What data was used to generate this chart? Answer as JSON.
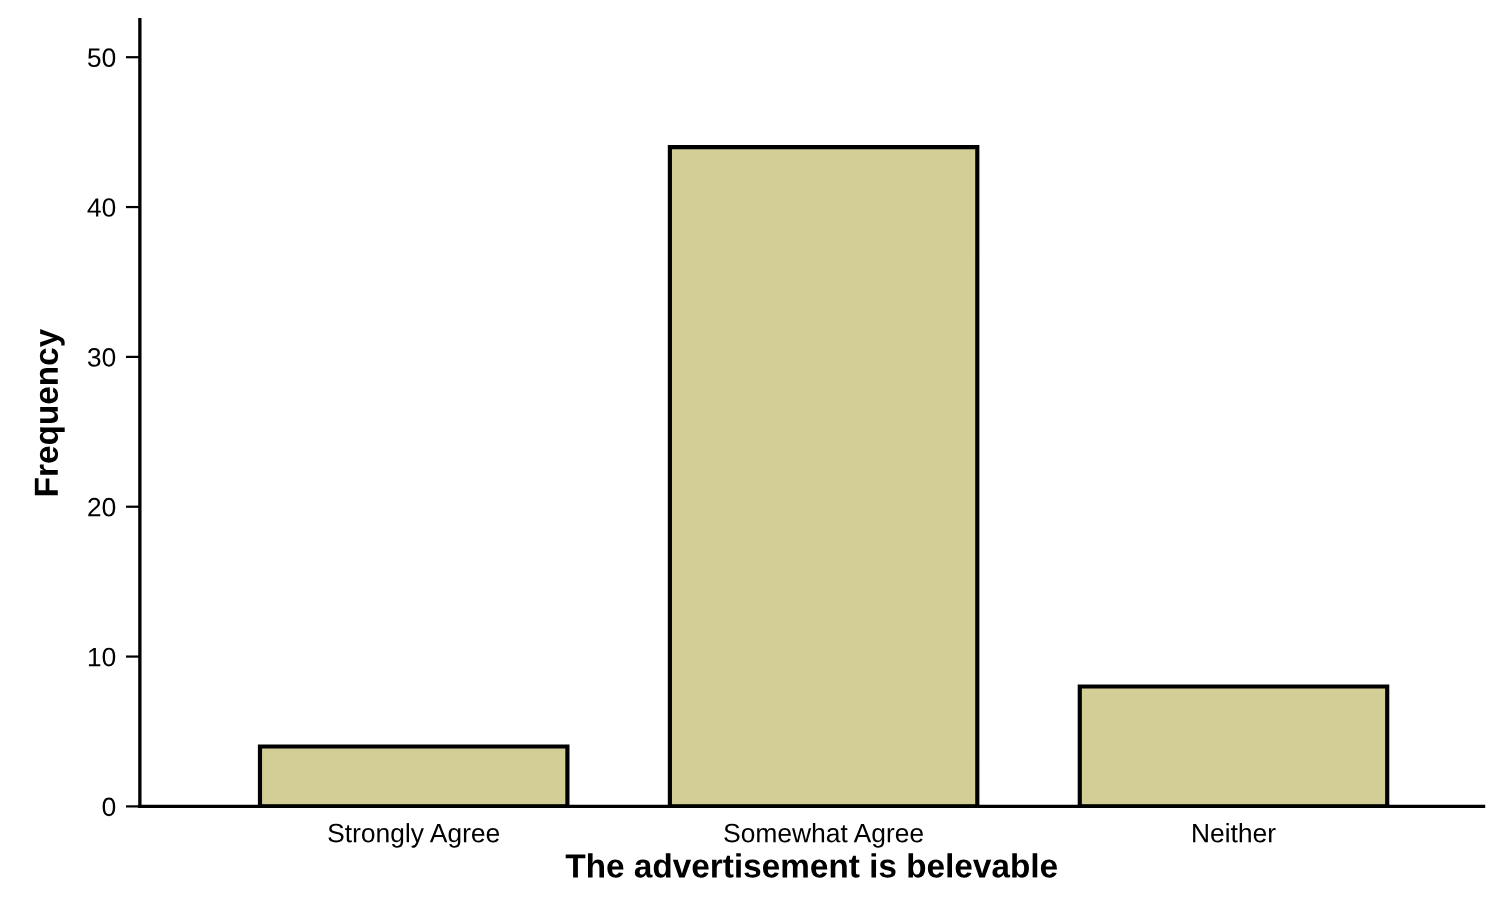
{
  "chart_data": {
    "type": "bar",
    "xlabel": "The advertisement is belevable",
    "ylabel": "Frequency",
    "categories": [
      "Strongly Agree",
      "Somewhat Agree",
      "Neither"
    ],
    "values": [
      4,
      44,
      8
    ],
    "color": "#d3cd96",
    "ylim": [
      0,
      52.5
    ],
    "yticks": [
      0,
      10,
      20,
      30,
      40,
      50
    ]
  }
}
